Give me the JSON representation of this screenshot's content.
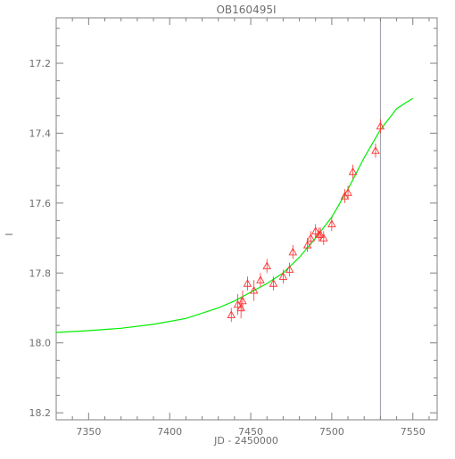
{
  "chart_data": {
    "type": "scatter",
    "title": "OB160495I",
    "xlabel": "JD - 2450000",
    "ylabel": "I",
    "xlim": [
      7330,
      7565
    ],
    "ylim": [
      18.22,
      17.07
    ],
    "y_inverted": true,
    "x_ticks": [
      7350,
      7400,
      7450,
      7500,
      7550
    ],
    "x_tick_labels": [
      "7350",
      "7400",
      "7450",
      "7500",
      "7550"
    ],
    "y_ticks": [
      17.2,
      17.4,
      17.6,
      17.8,
      18.0,
      18.2
    ],
    "y_tick_labels": [
      "17.2",
      "17.4",
      "17.6",
      "17.8",
      "18.0",
      "18.2"
    ],
    "grid": false,
    "vertical_line_x": 7530,
    "colors": {
      "points": "#ff3030",
      "model": "#00ee00",
      "vline": "#9a9aa8",
      "axes": "#808080"
    },
    "series": [
      {
        "kind": "points",
        "x": [
          7438,
          7442,
          7444,
          7445,
          7448,
          7452,
          7456,
          7460,
          7464,
          7470,
          7474,
          7476,
          7485,
          7487,
          7490,
          7492,
          7493,
          7495,
          7500,
          7508,
          7510,
          7513,
          7527,
          7530
        ],
        "y": [
          17.92,
          17.89,
          17.9,
          17.88,
          17.83,
          17.85,
          17.82,
          17.78,
          17.83,
          17.81,
          17.79,
          17.74,
          17.72,
          17.7,
          17.68,
          17.69,
          17.69,
          17.7,
          17.66,
          17.58,
          17.57,
          17.51,
          17.45,
          17.38
        ],
        "err": [
          0.02,
          0.03,
          0.03,
          0.03,
          0.02,
          0.03,
          0.02,
          0.02,
          0.02,
          0.02,
          0.02,
          0.02,
          0.02,
          0.02,
          0.02,
          0.02,
          0.02,
          0.02,
          0.02,
          0.02,
          0.02,
          0.02,
          0.02,
          0.02
        ]
      },
      {
        "kind": "line",
        "x": [
          7330,
          7350,
          7370,
          7390,
          7410,
          7430,
          7440,
          7450,
          7460,
          7470,
          7480,
          7490,
          7500,
          7510,
          7520,
          7530,
          7540,
          7550
        ],
        "y": [
          17.97,
          17.965,
          17.958,
          17.947,
          17.93,
          17.9,
          17.88,
          17.855,
          17.83,
          17.8,
          17.755,
          17.7,
          17.64,
          17.56,
          17.47,
          17.39,
          17.33,
          17.3
        ]
      }
    ]
  }
}
